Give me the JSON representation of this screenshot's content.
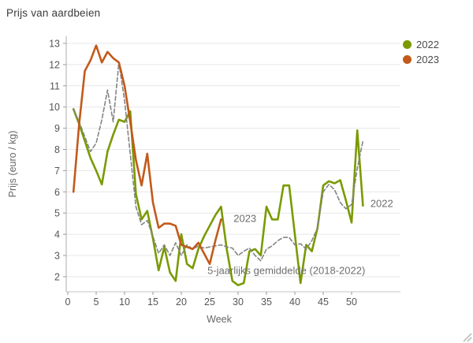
{
  "page": {
    "title": "Prijs van aardbeien"
  },
  "chart_data": {
    "type": "line",
    "title": "Prijs van aardbeien",
    "xlabel": "Week",
    "ylabel": "Prijs (euro / kg)",
    "xlim": [
      0,
      53
    ],
    "ylim": [
      1.3,
      13.3
    ],
    "xticks": [
      0,
      5,
      10,
      15,
      20,
      25,
      30,
      35,
      40,
      45,
      50
    ],
    "yticks": [
      2,
      3,
      4,
      5,
      6,
      7,
      8,
      9,
      10,
      11,
      12,
      13
    ],
    "grid": true,
    "legend_position": "top-right",
    "colors": {
      "green_2022": "#7A9A01",
      "orange_2023": "#C25A1B",
      "average_gray": "#848484"
    },
    "series": [
      {
        "name": "2022",
        "color": "#7A9A01",
        "style": "solid",
        "x": [
          1,
          2,
          3,
          4,
          5,
          6,
          7,
          8,
          9,
          10,
          11,
          12,
          13,
          14,
          15,
          16,
          17,
          18,
          19,
          20,
          21,
          22,
          23,
          24,
          25,
          26,
          27,
          28,
          29,
          30,
          31,
          32,
          33,
          34,
          35,
          36,
          37,
          38,
          39,
          40,
          41,
          42,
          43,
          44,
          45,
          46,
          47,
          48,
          49,
          50,
          51,
          52
        ],
        "values": [
          9.9,
          9.2,
          8.4,
          7.6,
          7.0,
          6.35,
          7.9,
          8.7,
          9.4,
          9.3,
          9.8,
          5.9,
          4.7,
          5.1,
          3.8,
          2.3,
          3.4,
          2.2,
          1.8,
          4.0,
          2.6,
          2.4,
          3.3,
          3.9,
          4.4,
          4.9,
          5.3,
          3.3,
          1.8,
          1.6,
          1.7,
          3.2,
          3.3,
          3.0,
          5.3,
          4.7,
          4.7,
          6.3,
          6.3,
          4.0,
          1.7,
          3.5,
          3.2,
          4.3,
          6.3,
          6.5,
          6.4,
          6.55,
          5.6,
          4.55,
          8.9,
          5.35
        ]
      },
      {
        "name": "2023",
        "color": "#C25A1B",
        "style": "solid",
        "x": [
          1,
          2,
          3,
          4,
          5,
          6,
          7,
          8,
          9,
          10,
          11,
          12,
          13,
          14,
          15,
          16,
          17,
          18,
          19,
          20,
          21,
          22,
          23,
          24,
          25,
          26,
          27
        ],
        "values": [
          6.0,
          9.2,
          11.7,
          12.2,
          12.9,
          12.1,
          12.6,
          12.3,
          12.1,
          11.0,
          9.3,
          7.5,
          6.3,
          7.8,
          5.5,
          4.3,
          4.5,
          4.5,
          4.4,
          3.5,
          3.4,
          3.3,
          3.6,
          3.1,
          2.6,
          3.7,
          4.7
        ]
      },
      {
        "name": "5-jaarlijks gemiddelde (2018-2022)",
        "color": "#848484",
        "style": "dashed",
        "x": [
          1,
          2,
          3,
          4,
          5,
          6,
          7,
          8,
          9,
          10,
          11,
          12,
          13,
          14,
          15,
          16,
          17,
          18,
          19,
          20,
          21,
          22,
          23,
          24,
          25,
          26,
          27,
          28,
          29,
          30,
          31,
          32,
          33,
          34,
          35,
          36,
          37,
          38,
          39,
          40,
          41,
          42,
          43,
          44,
          45,
          46,
          47,
          48,
          49,
          50,
          51,
          52
        ],
        "values": [
          9.9,
          9.3,
          8.6,
          7.9,
          8.3,
          9.4,
          10.8,
          9.3,
          12.1,
          10.3,
          7.8,
          5.3,
          4.45,
          4.65,
          3.9,
          3.1,
          3.5,
          3.0,
          3.6,
          3.0,
          3.5,
          3.3,
          3.45,
          3.35,
          3.4,
          3.45,
          3.5,
          3.4,
          3.35,
          3.0,
          3.2,
          3.35,
          3.0,
          2.75,
          3.3,
          3.45,
          3.7,
          3.85,
          3.85,
          3.5,
          3.55,
          3.3,
          3.7,
          4.3,
          6.0,
          6.35,
          6.1,
          5.5,
          5.2,
          5.4,
          7.1,
          8.4
        ]
      }
    ],
    "annotations": [
      {
        "text": "2023",
        "x": 29.2,
        "y": 4.75,
        "color": "#6e6e6e"
      },
      {
        "text": "2022",
        "x": 53.3,
        "y": 5.45,
        "color": "#6e6e6e"
      },
      {
        "text": "5-jaarlijks gemiddelde (2018-2022)",
        "x": 24.6,
        "y": 2.3,
        "color": "#6e6e6e"
      }
    ]
  },
  "legend": {
    "items": [
      {
        "label": "2022",
        "color": "#7A9A01"
      },
      {
        "label": "2023",
        "color": "#C25A1B"
      }
    ]
  }
}
